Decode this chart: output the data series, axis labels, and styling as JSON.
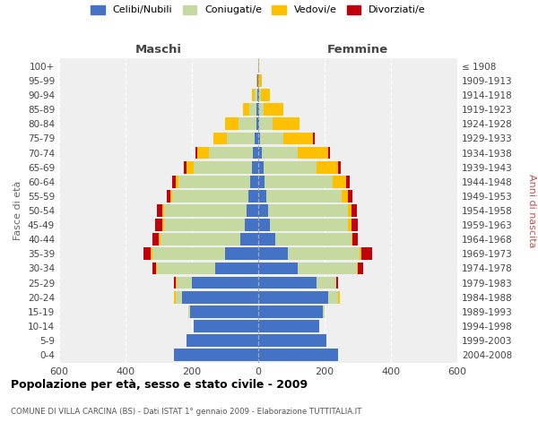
{
  "age_groups": [
    "0-4",
    "5-9",
    "10-14",
    "15-19",
    "20-24",
    "25-29",
    "30-34",
    "35-39",
    "40-44",
    "45-49",
    "50-54",
    "55-59",
    "60-64",
    "65-69",
    "70-74",
    "75-79",
    "80-84",
    "85-89",
    "90-94",
    "95-99",
    "100+"
  ],
  "birth_years": [
    "2004-2008",
    "1999-2003",
    "1994-1998",
    "1989-1993",
    "1984-1988",
    "1979-1983",
    "1974-1978",
    "1969-1973",
    "1964-1968",
    "1959-1963",
    "1954-1958",
    "1949-1953",
    "1944-1948",
    "1939-1943",
    "1934-1938",
    "1929-1933",
    "1924-1928",
    "1919-1923",
    "1914-1918",
    "1909-1913",
    "≤ 1908"
  ],
  "maschi": {
    "celibi": [
      255,
      215,
      195,
      205,
      230,
      200,
      130,
      100,
      55,
      40,
      35,
      30,
      25,
      20,
      15,
      10,
      5,
      5,
      4,
      2,
      0
    ],
    "coniugati": [
      0,
      0,
      0,
      5,
      18,
      45,
      175,
      220,
      240,
      245,
      250,
      230,
      215,
      175,
      135,
      85,
      55,
      22,
      8,
      2,
      0
    ],
    "vedovi": [
      0,
      0,
      0,
      0,
      5,
      5,
      3,
      5,
      5,
      5,
      5,
      5,
      10,
      20,
      35,
      40,
      40,
      18,
      8,
      2,
      0
    ],
    "divorziati": [
      0,
      0,
      0,
      0,
      0,
      5,
      10,
      20,
      20,
      20,
      15,
      12,
      10,
      8,
      5,
      0,
      0,
      0,
      0,
      0,
      0
    ]
  },
  "femmine": {
    "nubili": [
      240,
      205,
      185,
      195,
      210,
      175,
      120,
      90,
      50,
      35,
      30,
      25,
      20,
      15,
      10,
      5,
      3,
      2,
      2,
      1,
      0
    ],
    "coniugate": [
      0,
      0,
      0,
      5,
      30,
      60,
      178,
      215,
      230,
      235,
      240,
      225,
      205,
      160,
      110,
      70,
      40,
      15,
      5,
      1,
      0
    ],
    "vedove": [
      0,
      0,
      0,
      0,
      5,
      0,
      3,
      5,
      5,
      10,
      10,
      20,
      40,
      65,
      90,
      90,
      82,
      58,
      28,
      8,
      2
    ],
    "divorziate": [
      0,
      0,
      0,
      0,
      0,
      5,
      15,
      32,
      15,
      20,
      18,
      15,
      12,
      8,
      5,
      5,
      0,
      0,
      0,
      0,
      0
    ]
  },
  "colors": {
    "celibi": "#4472c4",
    "coniugati": "#c5d9a0",
    "vedovi": "#ffc000",
    "divorziati": "#c0000b"
  },
  "legend_labels": [
    "Celibi/Nubili",
    "Coniugati/e",
    "Vedovi/e",
    "Divorziati/e"
  ],
  "title": "Popolazione per età, sesso e stato civile - 2009",
  "subtitle": "COMUNE DI VILLA CARCINA (BS) - Dati ISTAT 1° gennaio 2009 - Elaborazione TUTTITALIA.IT",
  "header_left": "Maschi",
  "header_right": "Femmine",
  "ylabel_left": "Fasce di età",
  "ylabel_right": "Anni di nascita",
  "xlim": 600,
  "bg_color": "#efefef"
}
